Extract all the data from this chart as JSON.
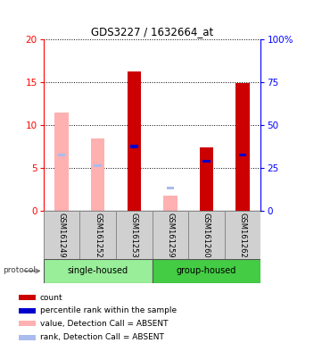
{
  "title": "GDS3227 / 1632664_at",
  "samples": [
    "GSM161249",
    "GSM161252",
    "GSM161253",
    "GSM161259",
    "GSM161260",
    "GSM161262"
  ],
  "absent": [
    true,
    true,
    false,
    true,
    false,
    false
  ],
  "count_values": [
    11.5,
    8.5,
    16.3,
    1.8,
    7.4,
    14.9
  ],
  "rank_values": [
    6.5,
    5.3,
    7.5,
    2.65,
    5.8,
    6.5
  ],
  "ylim_left": [
    0,
    20
  ],
  "ylim_right": [
    0,
    100
  ],
  "yticks_left": [
    0,
    5,
    10,
    15,
    20
  ],
  "yticks_right": [
    0,
    25,
    50,
    75,
    100
  ],
  "color_present_count": "#CC0000",
  "color_absent_count": "#FFB0B0",
  "color_present_rank": "#0000CC",
  "color_absent_rank": "#AABBEE",
  "group_ranges": [
    {
      "label": "single-housed",
      "start": 0,
      "end": 2,
      "color": "#99EE99"
    },
    {
      "label": "group-housed",
      "start": 3,
      "end": 5,
      "color": "#44CC44"
    }
  ],
  "legend_items": [
    {
      "color": "#CC0000",
      "label": "count"
    },
    {
      "color": "#0000CC",
      "label": "percentile rank within the sample"
    },
    {
      "color": "#FFB0B0",
      "label": "value, Detection Call = ABSENT"
    },
    {
      "color": "#AABBEE",
      "label": "rank, Detection Call = ABSENT"
    }
  ]
}
